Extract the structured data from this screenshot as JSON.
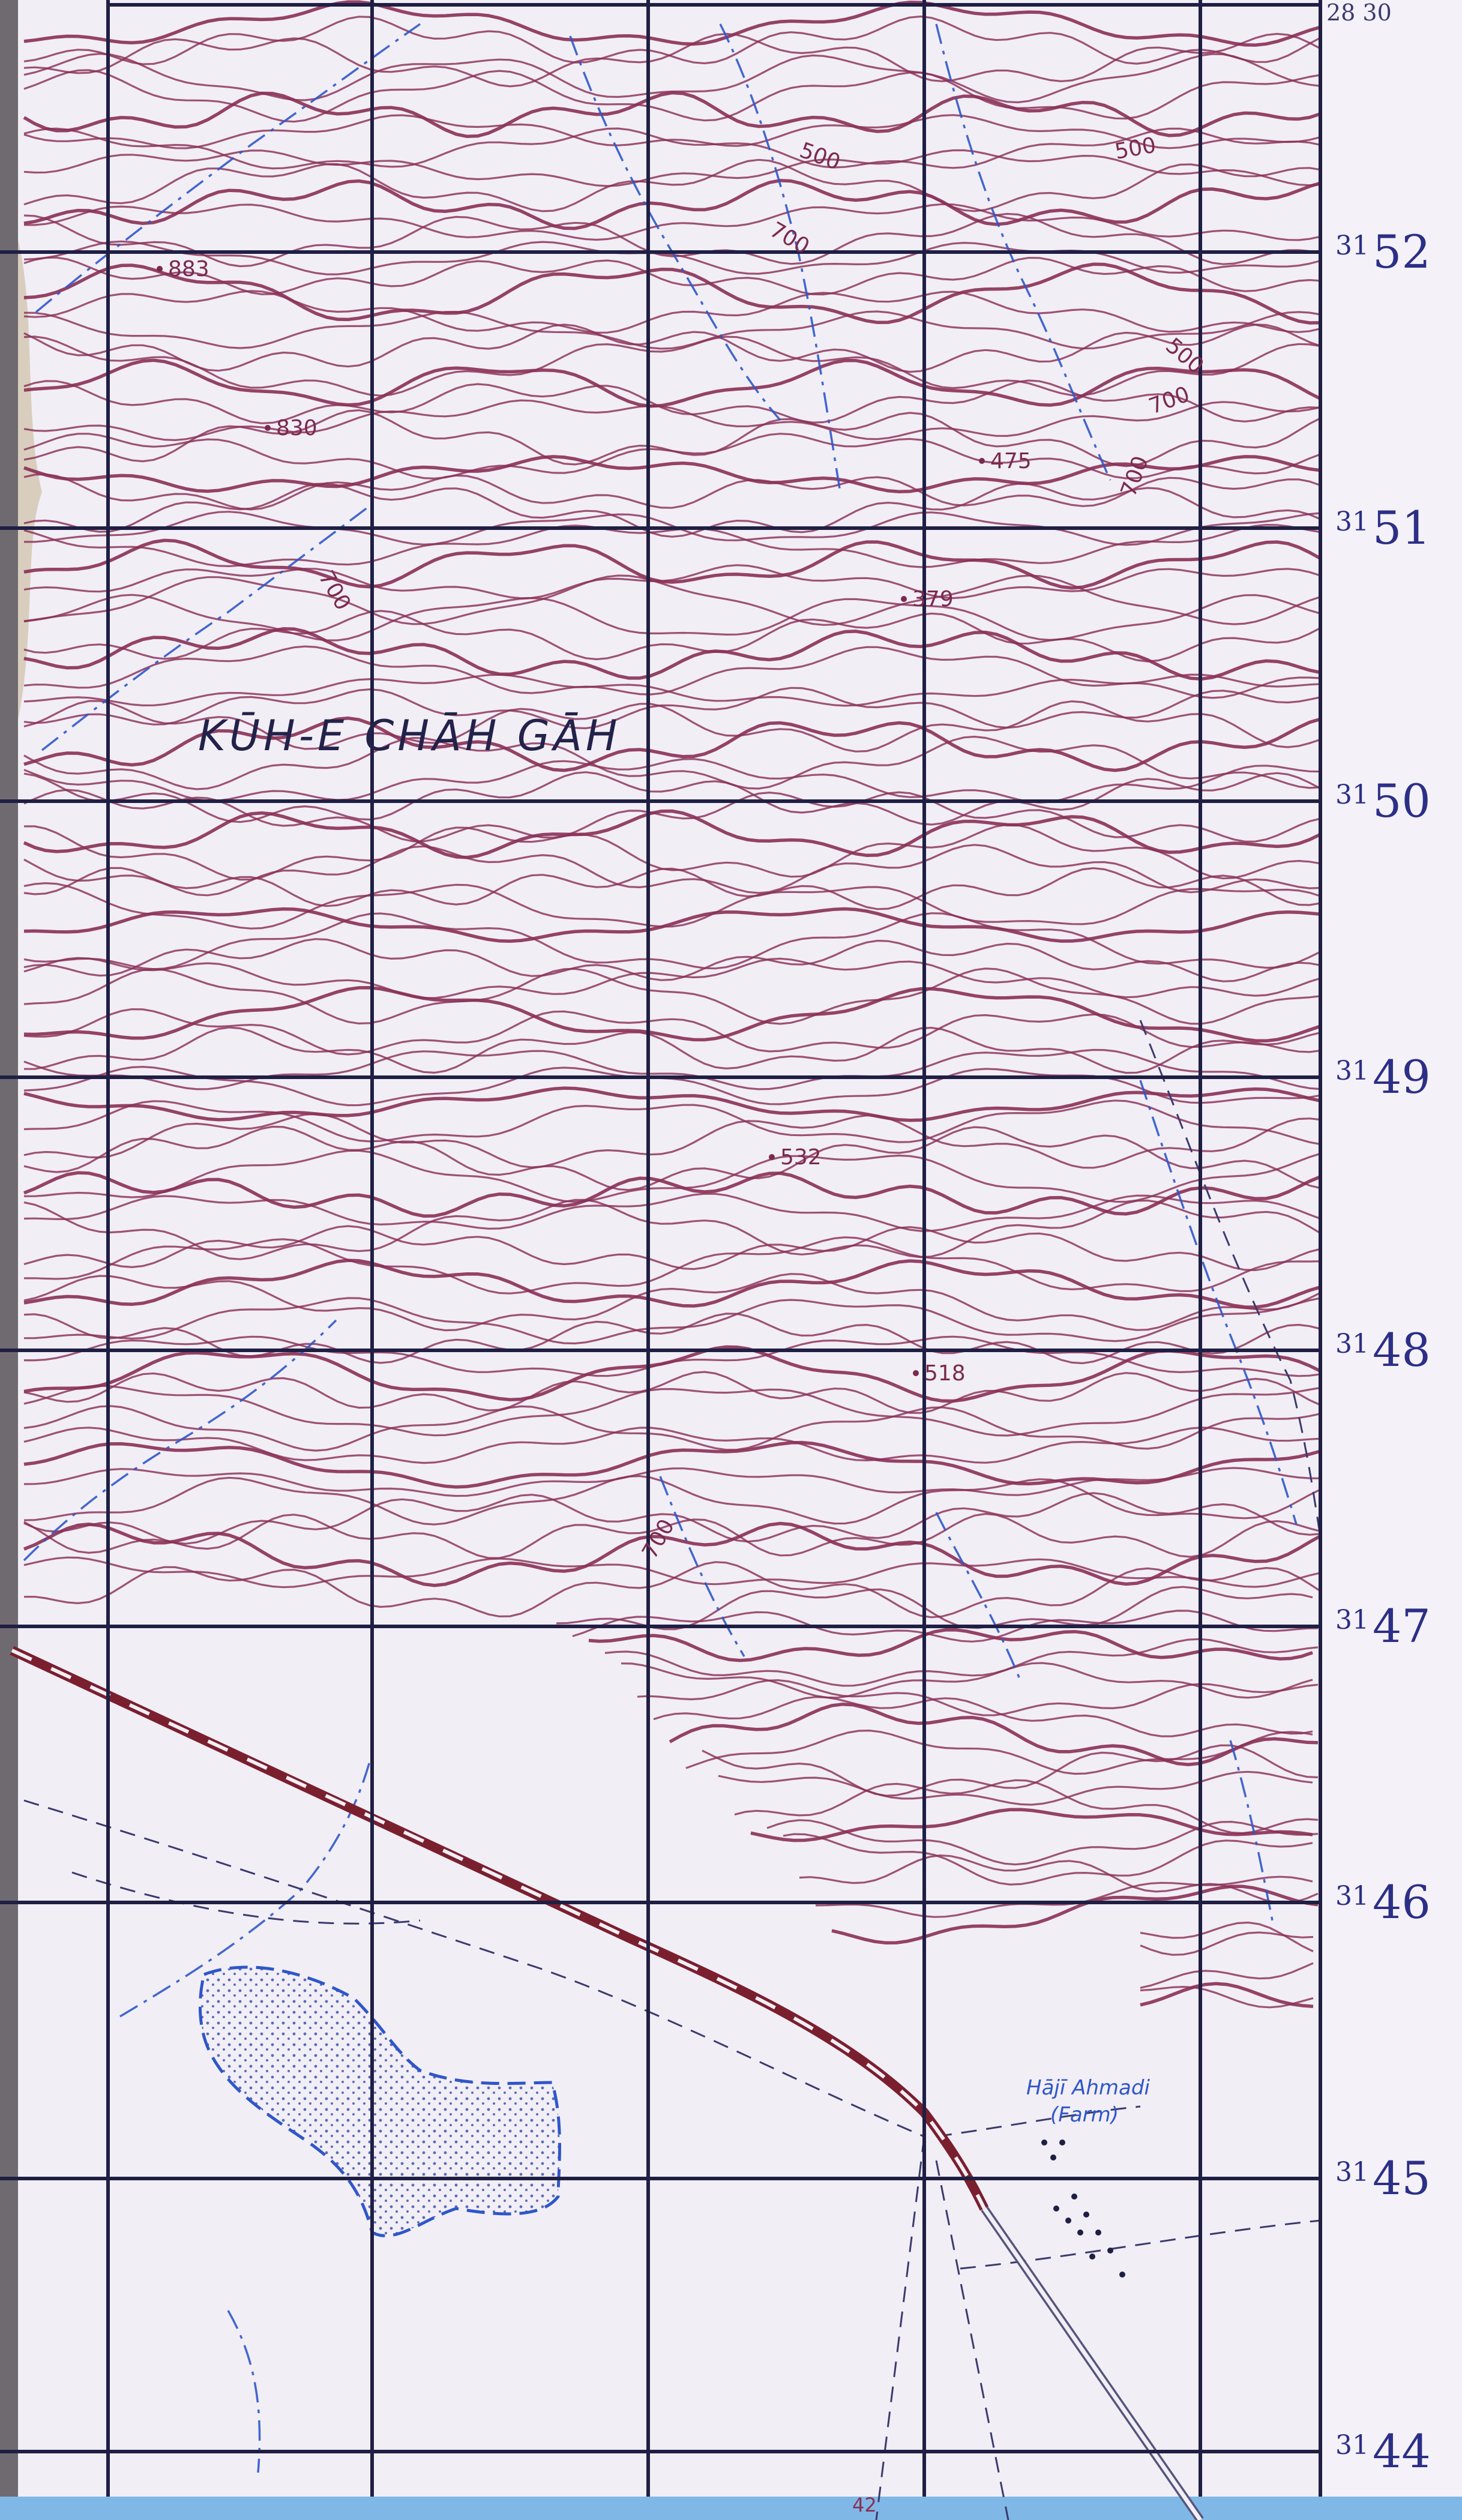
{
  "place_name": "KŪH-E CHĀH GĀH",
  "farm": {
    "name": "Hājī Ahmadi",
    "type": "(Farm)"
  },
  "corner_label": "28 30",
  "bottom_label": "42",
  "elevations": [
    "883",
    "830",
    "475",
    "379",
    "532",
    "518"
  ],
  "contour_labels": [
    "500",
    "700",
    "500",
    "500",
    "700",
    "700",
    "700",
    "700"
  ],
  "northing_labels": [
    {
      "prefix": "31",
      "value": "52"
    },
    {
      "prefix": "31",
      "value": "51"
    },
    {
      "prefix": "31",
      "value": "50"
    },
    {
      "prefix": "31",
      "value": "49"
    },
    {
      "prefix": "31",
      "value": "48"
    },
    {
      "prefix": "31",
      "value": "47"
    },
    {
      "prefix": "31",
      "value": "46"
    },
    {
      "prefix": "31",
      "value": "45"
    },
    {
      "prefix": "31",
      "value": "44"
    }
  ],
  "colors": {
    "paper": "#f1eef6",
    "contour": "#8a2f55",
    "grid": "#1f1f44",
    "water": "#2f56c9",
    "grid_label": "#2c2f86",
    "road": "#7a1f2e"
  }
}
